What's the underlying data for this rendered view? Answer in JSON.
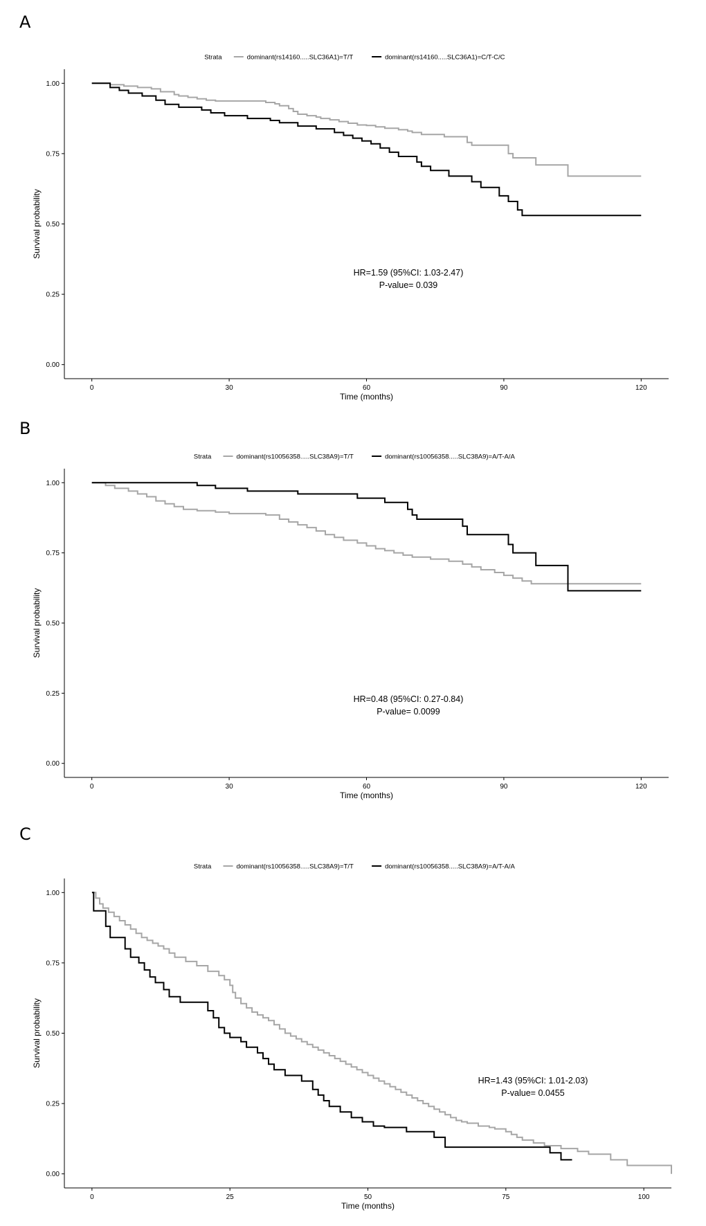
{
  "chart_data": [
    {
      "type": "line",
      "panel_label": "A",
      "legend": {
        "title": "Strata",
        "entries": [
          {
            "label": "dominant(rs14160.....SLC36A1)=T/T",
            "color": "#a6a6a6"
          },
          {
            "label": "dominant(rs14160.....SLC36A1)=C/T-C/C",
            "color": "#000000"
          }
        ],
        "position": "top"
      },
      "xlabel": "Time (months)",
      "ylabel": "Survival probability",
      "xlim": [
        -6,
        126
      ],
      "ylim": [
        -0.05,
        1.05
      ],
      "xticks": [
        0,
        30,
        60,
        90,
        120
      ],
      "yticks": [
        0.0,
        0.25,
        0.5,
        0.75,
        1.0
      ],
      "ytick_labels": [
        "0.00",
        "0.25",
        "0.50",
        "0.75",
        "1.00"
      ],
      "annotation": [
        "HR=1.59 (95%CI: 1.03-2.47)",
        "P-value= 0.039"
      ],
      "series": [
        {
          "name": "dominant(rs14160.....SLC36A1)=T/T",
          "color": "#a6a6a6",
          "x": [
            0,
            4,
            7,
            10,
            13,
            15,
            18,
            19,
            21,
            23,
            25,
            27,
            38,
            40,
            41,
            43,
            44,
            45,
            47,
            49,
            50,
            52,
            54,
            56,
            58,
            60,
            62,
            64,
            67,
            69,
            70,
            72,
            77,
            82,
            83,
            91,
            92,
            97,
            104,
            120
          ],
          "y": [
            1.0,
            0.995,
            0.99,
            0.985,
            0.98,
            0.97,
            0.96,
            0.955,
            0.95,
            0.945,
            0.94,
            0.937,
            0.932,
            0.927,
            0.92,
            0.91,
            0.9,
            0.89,
            0.885,
            0.88,
            0.875,
            0.87,
            0.864,
            0.858,
            0.852,
            0.85,
            0.845,
            0.84,
            0.835,
            0.83,
            0.825,
            0.818,
            0.81,
            0.79,
            0.78,
            0.75,
            0.735,
            0.71,
            0.67,
            0.67
          ]
        },
        {
          "name": "dominant(rs14160.....SLC36A1)=C/T-C/C",
          "color": "#000000",
          "x": [
            0,
            4,
            6,
            8,
            11,
            14,
            16,
            19,
            24,
            26,
            29,
            34,
            39,
            41,
            45,
            49,
            53,
            55,
            57,
            59,
            61,
            63,
            65,
            67,
            71,
            72,
            74,
            78,
            83,
            85,
            89,
            91,
            93,
            94,
            120
          ],
          "y": [
            1.0,
            0.985,
            0.975,
            0.965,
            0.955,
            0.94,
            0.925,
            0.915,
            0.905,
            0.895,
            0.885,
            0.875,
            0.868,
            0.86,
            0.848,
            0.838,
            0.825,
            0.815,
            0.805,
            0.795,
            0.785,
            0.77,
            0.755,
            0.74,
            0.72,
            0.705,
            0.69,
            0.67,
            0.65,
            0.63,
            0.6,
            0.58,
            0.55,
            0.53,
            0.53
          ]
        }
      ]
    },
    {
      "type": "line",
      "panel_label": "B",
      "legend": {
        "title": "Strata",
        "entries": [
          {
            "label": "dominant(rs10056358.....SLC38A9)=T/T",
            "color": "#a6a6a6"
          },
          {
            "label": "dominant(rs10056358.....SLC38A9)=A/T-A/A",
            "color": "#000000"
          }
        ],
        "position": "top"
      },
      "xlabel": "Time (months)",
      "ylabel": "Survival probability",
      "xlim": [
        -6,
        126
      ],
      "ylim": [
        -0.05,
        1.05
      ],
      "xticks": [
        0,
        30,
        60,
        90,
        120
      ],
      "yticks": [
        0.0,
        0.25,
        0.5,
        0.75,
        1.0
      ],
      "ytick_labels": [
        "0.00",
        "0.25",
        "0.50",
        "0.75",
        "1.00"
      ],
      "annotation": [
        "HR=0.48 (95%CI: 0.27-0.84)",
        "P-value= 0.0099"
      ],
      "series": [
        {
          "name": "dominant(rs10056358.....SLC38A9)=T/T",
          "color": "#a6a6a6",
          "x": [
            0,
            3,
            5,
            8,
            10,
            12,
            14,
            16,
            18,
            20,
            23,
            27,
            30,
            38,
            41,
            43,
            45,
            47,
            49,
            51,
            53,
            55,
            58,
            60,
            62,
            64,
            66,
            68,
            70,
            74,
            78,
            81,
            83,
            85,
            88,
            90,
            92,
            94,
            96,
            120
          ],
          "y": [
            1.0,
            0.99,
            0.98,
            0.97,
            0.96,
            0.95,
            0.935,
            0.925,
            0.915,
            0.905,
            0.9,
            0.895,
            0.89,
            0.885,
            0.87,
            0.86,
            0.85,
            0.84,
            0.828,
            0.815,
            0.805,
            0.795,
            0.785,
            0.775,
            0.765,
            0.758,
            0.75,
            0.742,
            0.735,
            0.728,
            0.72,
            0.71,
            0.7,
            0.69,
            0.68,
            0.67,
            0.66,
            0.65,
            0.64,
            0.64
          ]
        },
        {
          "name": "dominant(rs10056358.....SLC38A9)=A/T-A/A",
          "color": "#000000",
          "x": [
            0,
            23,
            27,
            34,
            45,
            58,
            64,
            69,
            70,
            71,
            81,
            82,
            91,
            92,
            97,
            104,
            120
          ],
          "y": [
            1.0,
            0.99,
            0.98,
            0.97,
            0.96,
            0.945,
            0.93,
            0.905,
            0.885,
            0.87,
            0.845,
            0.815,
            0.78,
            0.75,
            0.705,
            0.615,
            0.615
          ]
        }
      ]
    },
    {
      "type": "line",
      "panel_label": "C",
      "legend": {
        "title": "Strata",
        "entries": [
          {
            "label": "dominant(rs10056358.....SLC38A9)=T/T",
            "color": "#a6a6a6"
          },
          {
            "label": "dominant(rs10056358.....SLC38A9)=A/T-A/A",
            "color": "#000000"
          }
        ],
        "position": "top"
      },
      "xlabel": "Time (months)",
      "ylabel": "Survival probability",
      "xlim": [
        -5,
        105
      ],
      "ylim": [
        -0.05,
        1.05
      ],
      "xticks": [
        0,
        25,
        50,
        75,
        100
      ],
      "yticks": [
        0.0,
        0.25,
        0.5,
        0.75,
        1.0
      ],
      "ytick_labels": [
        "0.00",
        "0.25",
        "0.50",
        "0.75",
        "1.00"
      ],
      "annotation": [
        "HR=1.43 (95%CI: 1.01-2.03)",
        "P-value= 0.0455"
      ],
      "series": [
        {
          "name": "dominant(rs10056358.....SLC38A9)=T/T",
          "color": "#a6a6a6",
          "x": [
            0,
            0.7,
            1.4,
            2,
            3,
            4,
            5,
            6,
            7,
            8,
            9,
            10,
            11,
            12,
            13,
            14,
            15,
            17,
            19,
            21,
            23,
            24,
            25,
            25.5,
            26,
            27,
            28,
            29,
            30,
            31,
            32,
            33,
            34,
            35,
            36,
            37,
            38,
            39,
            40,
            41,
            42,
            43,
            44,
            45,
            46,
            47,
            48,
            49,
            50,
            51,
            52,
            53,
            54,
            55,
            56,
            57,
            58,
            59,
            60,
            61,
            62,
            63,
            64,
            65,
            66,
            67,
            68,
            70,
            72,
            73,
            75,
            76,
            77,
            78,
            80,
            82,
            85,
            88,
            90,
            94,
            97,
            100,
            105
          ],
          "y": [
            1.0,
            0.98,
            0.96,
            0.945,
            0.93,
            0.915,
            0.9,
            0.885,
            0.87,
            0.855,
            0.84,
            0.83,
            0.82,
            0.81,
            0.8,
            0.785,
            0.77,
            0.755,
            0.74,
            0.72,
            0.705,
            0.69,
            0.67,
            0.645,
            0.625,
            0.605,
            0.59,
            0.575,
            0.565,
            0.555,
            0.545,
            0.53,
            0.515,
            0.5,
            0.49,
            0.48,
            0.47,
            0.46,
            0.45,
            0.44,
            0.43,
            0.42,
            0.41,
            0.4,
            0.39,
            0.38,
            0.37,
            0.36,
            0.35,
            0.34,
            0.33,
            0.32,
            0.31,
            0.3,
            0.29,
            0.28,
            0.27,
            0.26,
            0.25,
            0.24,
            0.23,
            0.22,
            0.21,
            0.2,
            0.19,
            0.185,
            0.18,
            0.17,
            0.165,
            0.16,
            0.15,
            0.14,
            0.13,
            0.12,
            0.11,
            0.1,
            0.09,
            0.08,
            0.07,
            0.05,
            0.03,
            0.03,
            0.0
          ]
        },
        {
          "name": "dominant(rs10056358.....SLC38A9)=A/T-A/A",
          "color": "#000000",
          "x": [
            0,
            0.3,
            2.5,
            3.3,
            6,
            7,
            8.5,
            9.5,
            10.5,
            11.5,
            13,
            14,
            16,
            21,
            22,
            23,
            24,
            25,
            27,
            28,
            30,
            31,
            32,
            33,
            35,
            38,
            40,
            41,
            42,
            43,
            45,
            47,
            49,
            51,
            53,
            57,
            62,
            64,
            83,
            85,
            87
          ],
          "y": [
            1.0,
            0.935,
            0.88,
            0.84,
            0.8,
            0.77,
            0.75,
            0.725,
            0.7,
            0.68,
            0.655,
            0.63,
            0.61,
            0.58,
            0.555,
            0.52,
            0.5,
            0.485,
            0.47,
            0.45,
            0.43,
            0.41,
            0.39,
            0.37,
            0.35,
            0.33,
            0.3,
            0.28,
            0.26,
            0.24,
            0.22,
            0.2,
            0.185,
            0.17,
            0.165,
            0.15,
            0.13,
            0.095,
            0.075,
            0.05,
            0.05
          ]
        }
      ]
    }
  ]
}
